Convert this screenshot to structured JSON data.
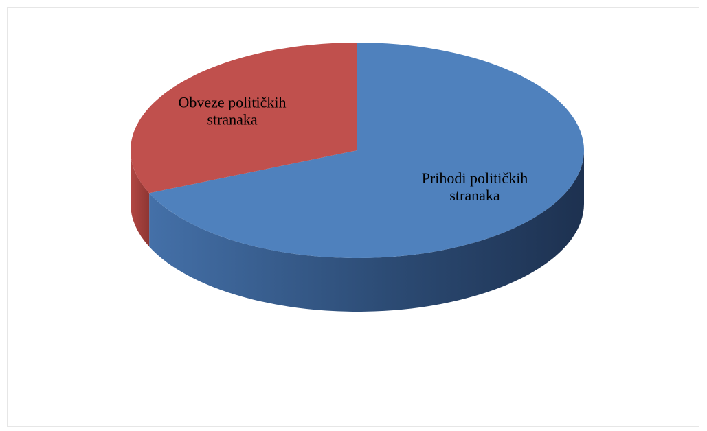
{
  "chart_data": {
    "type": "pie",
    "style": "3d",
    "slices": [
      {
        "label_lines": [
          "Prihodi političkih",
          "stranaka"
        ],
        "value": 68.5,
        "color": "#4F81BD"
      },
      {
        "label_lines": [
          "Obveze političkih",
          "stranaka"
        ],
        "value": 31.5,
        "color": "#C0504D"
      }
    ],
    "start_angle_deg": 0,
    "direction": "clockwise",
    "legend": "none"
  }
}
